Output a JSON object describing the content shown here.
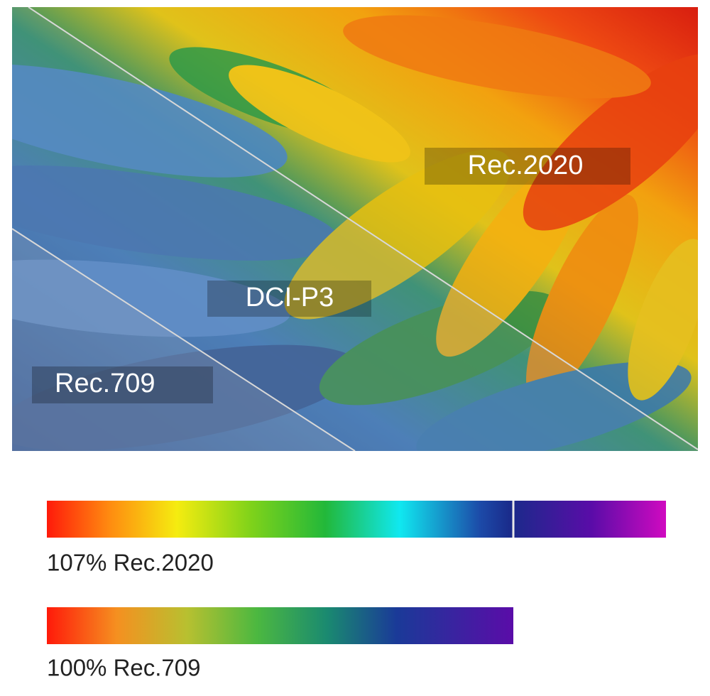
{
  "image": {
    "labels": [
      "Rec.2020",
      "DCI-P3",
      "Rec.709"
    ]
  },
  "bars": [
    {
      "caption": "107% Rec.2020"
    },
    {
      "caption": "100% Rec.709"
    }
  ]
}
